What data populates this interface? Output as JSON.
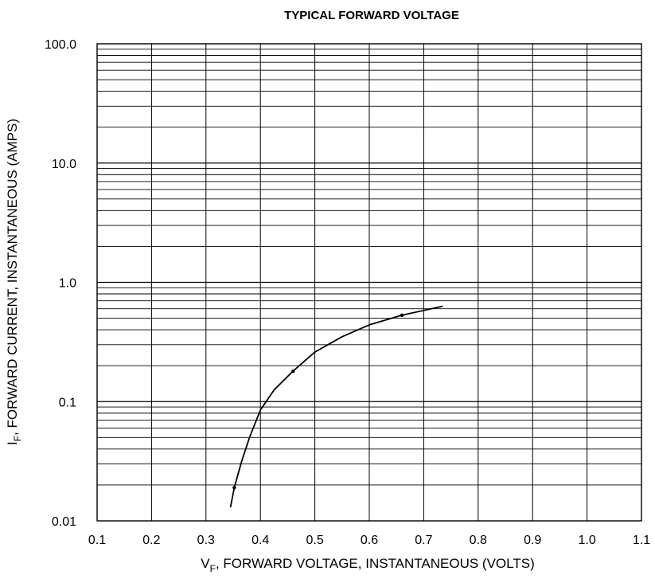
{
  "chart_data": {
    "type": "line",
    "title": "TYPICAL FORWARD VOLTAGE",
    "xlabel": {
      "main": "V",
      "sub": "F",
      "rest": ", FORWARD VOLTAGE, INSTANTANEOUS (VOLTS)"
    },
    "ylabel": {
      "main": "I",
      "sub": "F",
      "rest": ", FORWARD CURRENT, INSTANTANEOUS (AMPS)"
    },
    "xlim": [
      0.1,
      1.1
    ],
    "ylim": [
      0.01,
      100
    ],
    "yscale": "log",
    "grid": true,
    "x_ticks": [
      "0.1",
      "0.2",
      "0.3",
      "0.4",
      "0.5",
      "0.6",
      "0.7",
      "0.8",
      "0.9",
      "1.0",
      "1.1"
    ],
    "y_ticks": [
      {
        "value": 0.01,
        "label": "0.01"
      },
      {
        "value": 0.1,
        "label": "0.1"
      },
      {
        "value": 1,
        "label": "1.0"
      },
      {
        "value": 10,
        "label": "10.0"
      },
      {
        "value": 100,
        "label": "100.0"
      }
    ],
    "series": [
      {
        "x": [
          0.345,
          0.352,
          0.365,
          0.38,
          0.4,
          0.425,
          0.46,
          0.5,
          0.55,
          0.6,
          0.66,
          0.735
        ],
        "y": [
          0.013,
          0.019,
          0.031,
          0.05,
          0.085,
          0.125,
          0.18,
          0.26,
          0.35,
          0.44,
          0.53,
          0.63
        ]
      }
    ],
    "markers": [
      {
        "x": 0.352,
        "y": 0.019
      },
      {
        "x": 0.46,
        "y": 0.18
      },
      {
        "x": 0.66,
        "y": 0.53
      }
    ],
    "colors": {
      "line": "#000000",
      "grid": "#000000",
      "background": "#ffffff"
    }
  }
}
